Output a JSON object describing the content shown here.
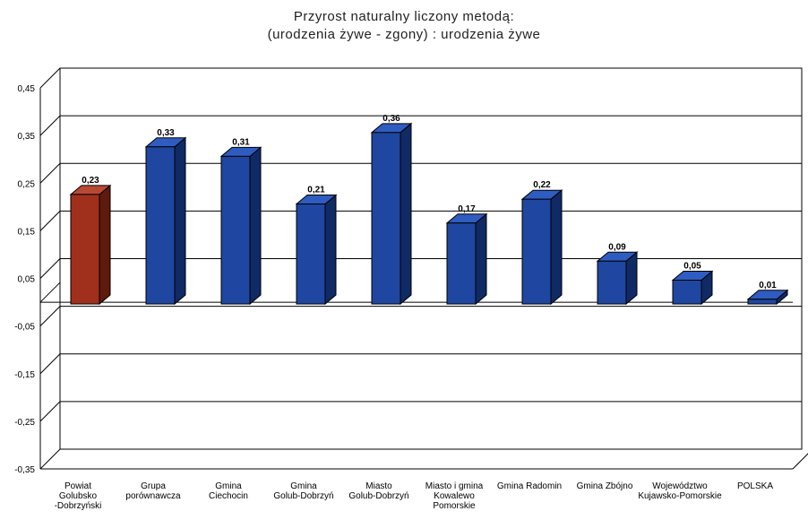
{
  "chart_data": {
    "type": "bar",
    "title": "Przyrost naturalny liczony metodą:",
    "subtitle": "(urodzenia żywe - zgony) : urodzenia żywe",
    "categories": [
      "Powiat Golubsko -Dobrzyński",
      "Grupa porównawcza",
      "Gmina Ciechocin",
      "Gmina Golub-Dobrzyń",
      "Miasto Golub-Dobrzyń",
      "Miasto i gmina Kowalewo Pomorskie",
      "Gmina Radomin",
      "Gmina Zbójno",
      "Województwo Kujawsko-Pomorskie",
      "POLSKA"
    ],
    "values": [
      0.23,
      0.33,
      0.31,
      0.21,
      0.36,
      0.17,
      0.22,
      0.09,
      0.05,
      0.01
    ],
    "value_labels": [
      "0,23",
      "0,33",
      "0,31",
      "0,21",
      "0,36",
      "0,17",
      "0,22",
      "0,09",
      "0,05",
      "0,01"
    ],
    "yticks": [
      "0,45",
      "0,35",
      "0,25",
      "0,15",
      "0,05",
      "-0,05",
      "-0,15",
      "-0,25",
      "-0,35"
    ],
    "ytick_values": [
      0.45,
      0.35,
      0.25,
      0.15,
      0.05,
      -0.05,
      -0.15,
      -0.25,
      -0.35
    ],
    "ylim": [
      -0.35,
      0.45
    ],
    "grid": true,
    "colors": {
      "highlight": "#a0301c",
      "default": "#1f46a0",
      "outline": "#000000",
      "grid": "#000000"
    },
    "highlight_index": 0
  }
}
